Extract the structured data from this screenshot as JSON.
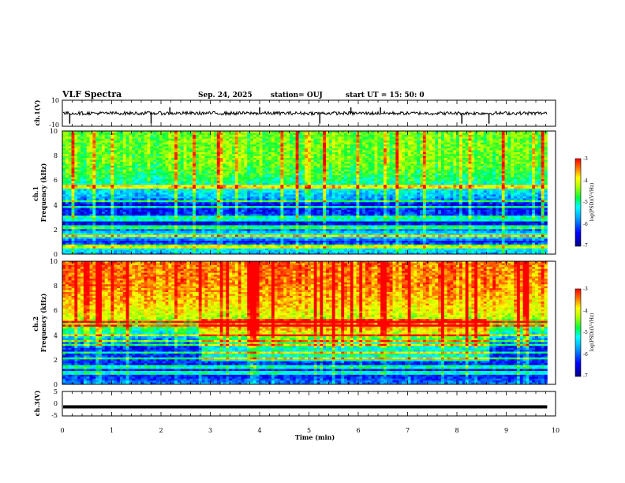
{
  "header": {
    "title": "VLF Spectra",
    "date": "Sep. 24, 2025",
    "station": "station= OUJ",
    "start": "start  UT  =   15: 50: 0"
  },
  "chart_data": {
    "type": "heatmap",
    "xlabel": "Time  (min)",
    "xlim": [
      0,
      10
    ],
    "x_ticks": [
      "0",
      "1",
      "2",
      "3",
      "4",
      "5",
      "6",
      "7",
      "8",
      "9",
      "10"
    ],
    "data_end_min": 9.83,
    "panels": [
      {
        "name": "ch1_waveform",
        "type": "line",
        "ylabel": "ch.1(V)",
        "ylim": [
          -10,
          10
        ],
        "y_ticks": [
          "10",
          "-10"
        ],
        "baseline": 0,
        "spikes_min": [
          0.15,
          1.8,
          2.18,
          4.0,
          5.22,
          5.85,
          6.45,
          8.1,
          8.65
        ]
      },
      {
        "name": "ch1_spectrogram",
        "type": "heatmap",
        "ylabel": "ch.1\nFrequency (kHz)",
        "ylim": [
          0,
          10
        ],
        "y_ticks": [
          "0",
          "2",
          "4",
          "6",
          "8",
          "10"
        ],
        "colorbar": {
          "label": "log(PSD)(V²/Hz)",
          "range": [
            -7,
            -3
          ],
          "ticks": [
            "-3",
            "-4",
            "-5",
            "-6",
            "-7"
          ]
        },
        "profile_kHz": [
          [
            0,
            -5.6
          ],
          [
            0.5,
            -5.2
          ],
          [
            1.0,
            -6.4
          ],
          [
            1.5,
            -5.0
          ],
          [
            2.0,
            -6.0
          ],
          [
            2.6,
            -6.6
          ],
          [
            3.2,
            -6.2
          ],
          [
            4.0,
            -6.5
          ],
          [
            4.6,
            -5.6
          ],
          [
            5.4,
            -5.2
          ],
          [
            6.2,
            -4.8
          ],
          [
            7.5,
            -4.5
          ],
          [
            10.0,
            -4.5
          ]
        ],
        "bands_kHz": [
          0.6,
          1.5,
          2.2,
          2.7,
          3.0,
          3.8,
          4.3,
          5.5
        ]
      },
      {
        "name": "ch2_spectrogram",
        "type": "heatmap",
        "ylabel": "ch.2\nFrequency (kHz)",
        "ylim": [
          0,
          10
        ],
        "y_ticks": [
          "0",
          "2",
          "4",
          "6",
          "8",
          "10"
        ],
        "colorbar": {
          "label": "log(PSD)(V²/Hz)",
          "range": [
            -7,
            -3
          ],
          "ticks": [
            "-3",
            "-4",
            "-5",
            "-6",
            "-7"
          ]
        },
        "profile_kHz": [
          [
            0,
            -5.8
          ],
          [
            0.5,
            -6.2
          ],
          [
            1.0,
            -6.5
          ],
          [
            2.0,
            -6.2
          ],
          [
            3.0,
            -6.3
          ],
          [
            3.8,
            -5.6
          ],
          [
            4.5,
            -4.8
          ],
          [
            5.5,
            -4.1
          ],
          [
            6.5,
            -3.8
          ],
          [
            8.0,
            -3.5
          ],
          [
            10.0,
            -3.4
          ]
        ],
        "bands_kHz": [
          0.9,
          1.4,
          2.1,
          2.6,
          3.2,
          3.5,
          4.0,
          4.8,
          5.1
        ],
        "enhanced_interval_min": [
          2.8,
          8.65
        ]
      },
      {
        "name": "ch3_waveform",
        "type": "line",
        "ylabel": "ch.3(V)",
        "ylim": [
          -5,
          5
        ],
        "y_ticks": [
          "5",
          "0",
          "-5"
        ],
        "baseline": -1.3
      }
    ]
  }
}
